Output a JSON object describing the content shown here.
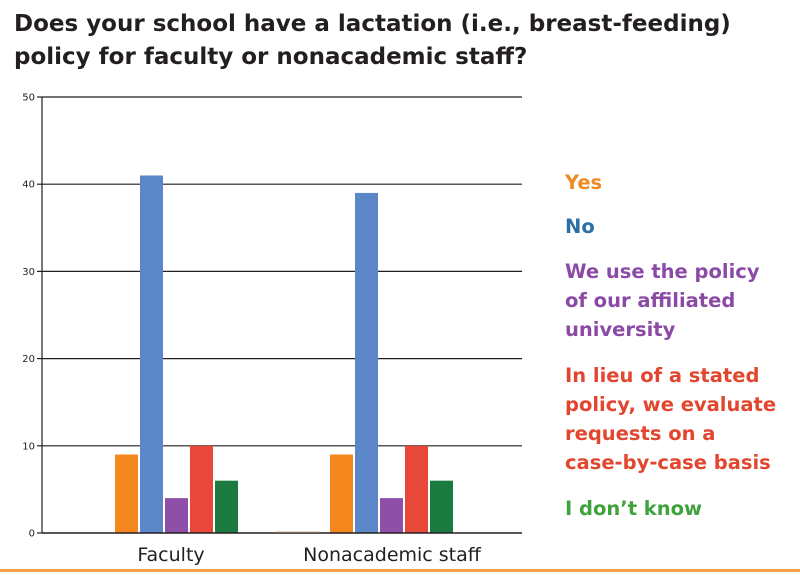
{
  "title": "Does your school have a lactation (i.e., breast-feeding) policy for faculty or nonacademic staff?",
  "chart_data": {
    "type": "bar",
    "categories": [
      "Faculty",
      "Nonacademic staff"
    ],
    "series": [
      {
        "name": "Yes",
        "values": [
          9,
          9
        ],
        "color": "#f5871f"
      },
      {
        "name": "No",
        "values": [
          41,
          39
        ],
        "color": "#5b87c9"
      },
      {
        "name": "We use the policy\nof our affiliated\nuniversity",
        "values": [
          4,
          4
        ],
        "color": "#8e4fa8"
      },
      {
        "name": "In lieu of a stated\npolicy, we evaluate\nrequests on a\ncase-by-case basis",
        "values": [
          10,
          10
        ],
        "color": "#e8483a"
      },
      {
        "name": "I don’t know",
        "values": [
          6,
          6
        ],
        "color": "#1a7a40"
      }
    ],
    "legend_text_colors": [
      "#f08a24",
      "#2b6fa6",
      "#8a4aa6",
      "#e2462f",
      "#3fa23c"
    ],
    "ylim": [
      0,
      50
    ],
    "yticks": [
      0,
      10,
      20,
      30,
      40,
      50
    ],
    "grid": true,
    "legend_position": "right",
    "xlabel": "",
    "ylabel": ""
  },
  "accent_rule_color": "#f5a04a"
}
